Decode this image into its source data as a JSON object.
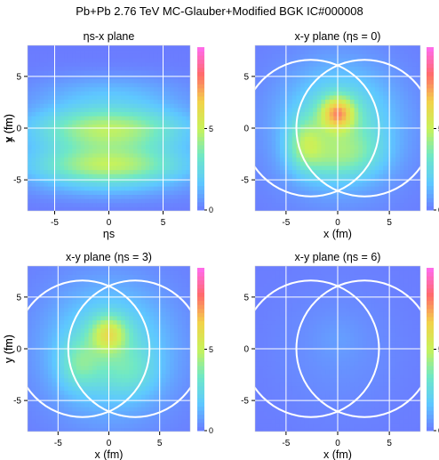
{
  "figure_title": "Pb+Pb 2.76 TeV MC-Glauber+Modified BGK IC#000008",
  "chart_data": [
    {
      "type": "heatmap",
      "title": "ηs-x plane",
      "xlabel": "ηs",
      "ylabel": "x (fm)",
      "xlim": [
        -7.5,
        7.5
      ],
      "ylim": [
        -8,
        8
      ],
      "xticks": [
        "-5",
        "0",
        "5"
      ],
      "yticks": [
        "-5",
        "0",
        "5"
      ],
      "colorbar_ticks": [
        "0",
        "5"
      ],
      "colorbar_range": [
        0,
        10
      ],
      "colormap": [
        "#6b7cff",
        "#5ec8ff",
        "#6fe8c6",
        "#c8f25a",
        "#f2d24a",
        "#ff6b6b",
        "#ff6bf0"
      ],
      "grid": true,
      "hotspots": [
        {
          "cx": 0,
          "cy": 0.2,
          "sx": 5.2,
          "sy": 1.5,
          "v": 3.6
        },
        {
          "cx": 0,
          "cy": -3.7,
          "sx": 5.2,
          "sy": 1.2,
          "v": 3.5
        },
        {
          "cx": 0,
          "cy": -1.8,
          "sx": 5.0,
          "sy": 2.0,
          "v": 1.8
        },
        {
          "cx": 0,
          "cy": 3.5,
          "sx": 5.0,
          "sy": 1.3,
          "v": 1.2
        },
        {
          "cx": 0,
          "cy": -5.8,
          "sx": 5.0,
          "sy": 1.0,
          "v": 0.8
        }
      ]
    },
    {
      "type": "heatmap",
      "title": "x-y plane (ηs = 0)",
      "xlabel": "x (fm)",
      "ylabel": "y (fm)",
      "xlim": [
        -8,
        8
      ],
      "ylim": [
        -8,
        8
      ],
      "xticks": [
        "-5",
        "0",
        "5"
      ],
      "yticks": [
        "-5",
        "0",
        "5"
      ],
      "colorbar_ticks": [
        "0",
        "5"
      ],
      "colorbar_range": [
        0,
        10
      ],
      "colormap": [
        "#6b7cff",
        "#5ec8ff",
        "#6fe8c6",
        "#c8f25a",
        "#f2d24a",
        "#ff6b6b",
        "#ff6bf0"
      ],
      "grid": true,
      "nucleus_circles": [
        {
          "cx": -2.6,
          "cy": 0,
          "r": 6.6
        },
        {
          "cx": 2.6,
          "cy": 0,
          "r": 6.6
        }
      ],
      "hotspots": [
        {
          "cx": 0,
          "cy": 1.5,
          "sx": 1.1,
          "sy": 1.1,
          "v": 4.6
        },
        {
          "cx": 0.2,
          "cy": 0.5,
          "sx": 3.5,
          "sy": 3.5,
          "v": 2.4
        },
        {
          "cx": -3.2,
          "cy": -1.5,
          "sx": 1.2,
          "sy": 1.7,
          "v": 2.4
        },
        {
          "cx": -1.0,
          "cy": -3.0,
          "sx": 2.2,
          "sy": 1.6,
          "v": 1.4
        },
        {
          "cx": 2.2,
          "cy": -2.5,
          "sx": 2.0,
          "sy": 1.6,
          "v": 1.1
        },
        {
          "cx": 0,
          "cy": 0,
          "sx": 5.0,
          "sy": 5.0,
          "v": 1.0
        }
      ]
    },
    {
      "type": "heatmap",
      "title": "x-y plane (ηs = 3)",
      "xlabel": "x (fm)",
      "ylabel": "y (fm)",
      "xlim": [
        -8,
        8
      ],
      "ylim": [
        -8,
        8
      ],
      "xticks": [
        "-5",
        "0",
        "5"
      ],
      "yticks": [
        "-5",
        "0",
        "5"
      ],
      "colorbar_ticks": [
        "0",
        "5"
      ],
      "colorbar_range": [
        0,
        10
      ],
      "colormap": [
        "#6b7cff",
        "#5ec8ff",
        "#6fe8c6",
        "#c8f25a",
        "#f2d24a",
        "#ff6b6b",
        "#ff6bf0"
      ],
      "grid": true,
      "nucleus_circles": [
        {
          "cx": -2.6,
          "cy": 0,
          "r": 6.6
        },
        {
          "cx": 2.6,
          "cy": 0,
          "r": 6.6
        }
      ],
      "hotspots": [
        {
          "cx": 0,
          "cy": 1.5,
          "sx": 1.2,
          "sy": 1.2,
          "v": 3.2
        },
        {
          "cx": 0,
          "cy": 0,
          "sx": 3.8,
          "sy": 3.8,
          "v": 2.1
        },
        {
          "cx": -3.0,
          "cy": -1.5,
          "sx": 1.4,
          "sy": 1.7,
          "v": 1.6
        },
        {
          "cx": 2.3,
          "cy": -2.3,
          "sx": 1.8,
          "sy": 1.6,
          "v": 1.0
        },
        {
          "cx": 0,
          "cy": 0,
          "sx": 5.2,
          "sy": 5.2,
          "v": 1.0
        }
      ]
    },
    {
      "type": "heatmap",
      "title": "x-y plane (ηs = 6)",
      "xlabel": "x (fm)",
      "ylabel": "y (fm)",
      "xlim": [
        -8,
        8
      ],
      "ylim": [
        -8,
        8
      ],
      "xticks": [
        "-5",
        "0",
        "5"
      ],
      "yticks": [
        "-5",
        "0",
        "5"
      ],
      "colorbar_ticks": [
        "0",
        "5"
      ],
      "colorbar_range": [
        0,
        10
      ],
      "colormap": [
        "#6b7cff",
        "#5ec8ff",
        "#6fe8c6",
        "#c8f25a",
        "#f2d24a",
        "#ff6b6b",
        "#ff6bf0"
      ],
      "grid": true,
      "nucleus_circles": [
        {
          "cx": -2.6,
          "cy": 0,
          "r": 6.6
        },
        {
          "cx": 2.6,
          "cy": 0,
          "r": 6.6
        }
      ],
      "hotspots": [
        {
          "cx": 0,
          "cy": 0,
          "sx": 4.5,
          "sy": 4.5,
          "v": 0.5
        },
        {
          "cx": 0,
          "cy": 1.0,
          "sx": 1.5,
          "sy": 1.5,
          "v": 0.25
        }
      ]
    }
  ]
}
